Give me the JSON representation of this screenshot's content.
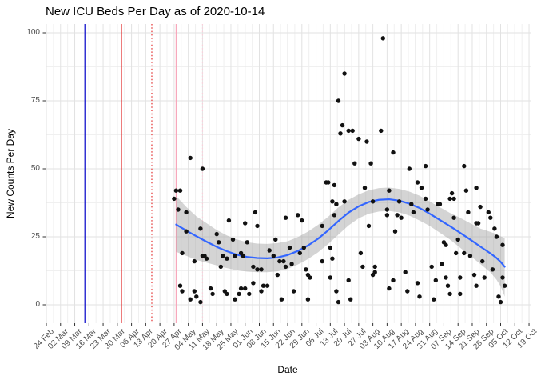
{
  "title": "New ICU Beds Per Day as of 2020-10-14",
  "colors": {
    "background": "#FFFFFF",
    "grid_major": "#E2E2E2",
    "grid_minor": "#F0F0F0",
    "axis_text": "#4D4D4D",
    "tick_mark": "#333333",
    "point": "#111111",
    "smooth_line": "#3366FF",
    "confidence_band": "#999999",
    "vline_blue": "#1414CC",
    "vline_red": "#DE1414",
    "vline_red_dotted": "#E84040",
    "vline_pink": "#F7A8BC",
    "vline_pink_dotted": "#FAD0DB"
  },
  "chart_data": {
    "type": "scatter",
    "title": "New ICU Beds Per Day as of 2020-10-14",
    "xlabel": "Date",
    "ylabel": "New Counts Per Day",
    "grid": true,
    "legend": false,
    "ylim": [
      0,
      100
    ],
    "y_ticks": [
      0,
      25,
      50,
      75,
      100
    ],
    "y_minor_ticks": [
      12.5,
      37.5,
      62.5,
      87.5
    ],
    "x_start_date": "2020-02-24",
    "x_tick_interval_days": 7,
    "x_tick_labels": [
      "24 Feb",
      "02 Mar",
      "09 Mar",
      "16 Mar",
      "23 Mar",
      "30 Mar",
      "06 Apr",
      "13 Apr",
      "20 Apr",
      "27 Apr",
      "04 May",
      "11 May",
      "18 May",
      "25 May",
      "01 Jun",
      "08 Jun",
      "15 Jun",
      "22 Jun",
      "29 Jun",
      "06 Jul",
      "13 Jul",
      "20 Jul",
      "27 Jul",
      "03 Aug",
      "10 Aug",
      "17 Aug",
      "24 Aug",
      "31 Aug",
      "07 Sep",
      "14 Sep",
      "21 Sep",
      "28 Sep",
      "05 Oct",
      "12 Oct",
      "19 Oct"
    ],
    "point_color": "#111111",
    "vlines": [
      {
        "date": "2020-03-14",
        "color": "#1414CC",
        "style": "solid"
      },
      {
        "date": "2020-04-01",
        "color": "#DE1414",
        "style": "solid"
      },
      {
        "date": "2020-04-16",
        "color": "#E84040",
        "style": "dotted"
      },
      {
        "date": "2020-04-28",
        "color": "#F7A8BC",
        "style": "solid"
      },
      {
        "date": "2020-05-11",
        "color": "#FAD0DB",
        "style": "dotted"
      }
    ],
    "points": [
      [
        "2020-04-27",
        39
      ],
      [
        "2020-04-28",
        42
      ],
      [
        "2020-04-29",
        35
      ],
      [
        "2020-04-30",
        42
      ],
      [
        "2020-04-30",
        7
      ],
      [
        "2020-05-01",
        19
      ],
      [
        "2020-05-01",
        5
      ],
      [
        "2020-05-03",
        34
      ],
      [
        "2020-05-03",
        27
      ],
      [
        "2020-05-05",
        54
      ],
      [
        "2020-05-05",
        2
      ],
      [
        "2020-05-07",
        16
      ],
      [
        "2020-05-07",
        5
      ],
      [
        "2020-05-08",
        3
      ],
      [
        "2020-05-10",
        28
      ],
      [
        "2020-05-10",
        1
      ],
      [
        "2020-05-11",
        50
      ],
      [
        "2020-05-11",
        18
      ],
      [
        "2020-05-12",
        18
      ],
      [
        "2020-05-13",
        17
      ],
      [
        "2020-05-15",
        6
      ],
      [
        "2020-05-16",
        4
      ],
      [
        "2020-05-18",
        26
      ],
      [
        "2020-05-19",
        23
      ],
      [
        "2020-05-20",
        14
      ],
      [
        "2020-05-21",
        18
      ],
      [
        "2020-05-22",
        5
      ],
      [
        "2020-05-23",
        17
      ],
      [
        "2020-05-23",
        4
      ],
      [
        "2020-05-24",
        31
      ],
      [
        "2020-05-26",
        24
      ],
      [
        "2020-05-27",
        18
      ],
      [
        "2020-05-27",
        2
      ],
      [
        "2020-05-29",
        4
      ],
      [
        "2020-05-30",
        19
      ],
      [
        "2020-05-30",
        6
      ],
      [
        "2020-05-31",
        18
      ],
      [
        "2020-06-01",
        30
      ],
      [
        "2020-06-01",
        6
      ],
      [
        "2020-06-02",
        23
      ],
      [
        "2020-06-03",
        4
      ],
      [
        "2020-06-05",
        14
      ],
      [
        "2020-06-05",
        8
      ],
      [
        "2020-06-06",
        34
      ],
      [
        "2020-06-07",
        29
      ],
      [
        "2020-06-07",
        13
      ],
      [
        "2020-06-09",
        13
      ],
      [
        "2020-06-09",
        5
      ],
      [
        "2020-06-10",
        7
      ],
      [
        "2020-06-12",
        7
      ],
      [
        "2020-06-13",
        20
      ],
      [
        "2020-06-15",
        18
      ],
      [
        "2020-06-16",
        24
      ],
      [
        "2020-06-17",
        11
      ],
      [
        "2020-06-18",
        16
      ],
      [
        "2020-06-19",
        2
      ],
      [
        "2020-06-20",
        16
      ],
      [
        "2020-06-21",
        32
      ],
      [
        "2020-06-21",
        14
      ],
      [
        "2020-06-23",
        21
      ],
      [
        "2020-06-24",
        15
      ],
      [
        "2020-06-25",
        5
      ],
      [
        "2020-06-27",
        33
      ],
      [
        "2020-06-28",
        19
      ],
      [
        "2020-06-29",
        31
      ],
      [
        "2020-06-30",
        21
      ],
      [
        "2020-07-01",
        13
      ],
      [
        "2020-07-02",
        11
      ],
      [
        "2020-07-02",
        2
      ],
      [
        "2020-07-03",
        10
      ],
      [
        "2020-07-09",
        29
      ],
      [
        "2020-07-09",
        16
      ],
      [
        "2020-07-11",
        45
      ],
      [
        "2020-07-12",
        45
      ],
      [
        "2020-07-13",
        21
      ],
      [
        "2020-07-13",
        10
      ],
      [
        "2020-07-14",
        38
      ],
      [
        "2020-07-14",
        17
      ],
      [
        "2020-07-15",
        44
      ],
      [
        "2020-07-15",
        33
      ],
      [
        "2020-07-16",
        37
      ],
      [
        "2020-07-16",
        5
      ],
      [
        "2020-07-17",
        75
      ],
      [
        "2020-07-17",
        1
      ],
      [
        "2020-07-18",
        63
      ],
      [
        "2020-07-19",
        66
      ],
      [
        "2020-07-20",
        85
      ],
      [
        "2020-07-20",
        38
      ],
      [
        "2020-07-22",
        64
      ],
      [
        "2020-07-22",
        9
      ],
      [
        "2020-07-23",
        2
      ],
      [
        "2020-07-24",
        64
      ],
      [
        "2020-07-25",
        52
      ],
      [
        "2020-07-27",
        61
      ],
      [
        "2020-07-28",
        19
      ],
      [
        "2020-07-29",
        14
      ],
      [
        "2020-07-30",
        43
      ],
      [
        "2020-07-31",
        60
      ],
      [
        "2020-08-01",
        29
      ],
      [
        "2020-08-02",
        52
      ],
      [
        "2020-08-03",
        38
      ],
      [
        "2020-08-03",
        11
      ],
      [
        "2020-08-04",
        14
      ],
      [
        "2020-08-04",
        12
      ],
      [
        "2020-08-07",
        64
      ],
      [
        "2020-08-08",
        98
      ],
      [
        "2020-08-10",
        35
      ],
      [
        "2020-08-10",
        33
      ],
      [
        "2020-08-11",
        42
      ],
      [
        "2020-08-11",
        6
      ],
      [
        "2020-08-13",
        56
      ],
      [
        "2020-08-13",
        9
      ],
      [
        "2020-08-14",
        27
      ],
      [
        "2020-08-15",
        33
      ],
      [
        "2020-08-16",
        38
      ],
      [
        "2020-08-17",
        32
      ],
      [
        "2020-08-19",
        12
      ],
      [
        "2020-08-20",
        5
      ],
      [
        "2020-08-21",
        50
      ],
      [
        "2020-08-22",
        37
      ],
      [
        "2020-08-23",
        34
      ],
      [
        "2020-08-25",
        45
      ],
      [
        "2020-08-25",
        8
      ],
      [
        "2020-08-26",
        3
      ],
      [
        "2020-08-27",
        43
      ],
      [
        "2020-08-29",
        51
      ],
      [
        "2020-08-29",
        39
      ],
      [
        "2020-08-30",
        35
      ],
      [
        "2020-09-01",
        14
      ],
      [
        "2020-09-02",
        2
      ],
      [
        "2020-09-03",
        9
      ],
      [
        "2020-09-04",
        37
      ],
      [
        "2020-09-05",
        37
      ],
      [
        "2020-09-06",
        15
      ],
      [
        "2020-09-07",
        23
      ],
      [
        "2020-09-08",
        22
      ],
      [
        "2020-09-08",
        10
      ],
      [
        "2020-09-09",
        7
      ],
      [
        "2020-09-10",
        39
      ],
      [
        "2020-09-10",
        4
      ],
      [
        "2020-09-11",
        41
      ],
      [
        "2020-09-12",
        39
      ],
      [
        "2020-09-12",
        32
      ],
      [
        "2020-09-13",
        19
      ],
      [
        "2020-09-14",
        24
      ],
      [
        "2020-09-15",
        10
      ],
      [
        "2020-09-15",
        4
      ],
      [
        "2020-09-17",
        51
      ],
      [
        "2020-09-17",
        19
      ],
      [
        "2020-09-18",
        42
      ],
      [
        "2020-09-19",
        34
      ],
      [
        "2020-09-20",
        18
      ],
      [
        "2020-09-22",
        11
      ],
      [
        "2020-09-23",
        43
      ],
      [
        "2020-09-23",
        30
      ],
      [
        "2020-09-23",
        7
      ],
      [
        "2020-09-24",
        30
      ],
      [
        "2020-09-25",
        36
      ],
      [
        "2020-09-26",
        16
      ],
      [
        "2020-09-27",
        10
      ],
      [
        "2020-09-29",
        34
      ],
      [
        "2020-09-30",
        32
      ],
      [
        "2020-10-01",
        13
      ],
      [
        "2020-10-02",
        28
      ],
      [
        "2020-10-03",
        25
      ],
      [
        "2020-10-04",
        3
      ],
      [
        "2020-10-05",
        1
      ],
      [
        "2020-10-06",
        22
      ],
      [
        "2020-10-06",
        10
      ],
      [
        "2020-10-07",
        7
      ]
    ],
    "smooth_line": {
      "color": "#3366FF",
      "points": [
        [
          "2020-04-28",
          29.5
        ],
        [
          "2020-05-03",
          27.3
        ],
        [
          "2020-05-08",
          25.2
        ],
        [
          "2020-05-13",
          23.2
        ],
        [
          "2020-05-18",
          21.3
        ],
        [
          "2020-05-23",
          19.7
        ],
        [
          "2020-05-28",
          18.4
        ],
        [
          "2020-06-02",
          17.6
        ],
        [
          "2020-06-07",
          17.2
        ],
        [
          "2020-06-12",
          17.1
        ],
        [
          "2020-06-17",
          17.4
        ],
        [
          "2020-06-22",
          18.3
        ],
        [
          "2020-06-27",
          19.8
        ],
        [
          "2020-07-02",
          21.8
        ],
        [
          "2020-07-07",
          24.3
        ],
        [
          "2020-07-12",
          27.4
        ],
        [
          "2020-07-17",
          30.8
        ],
        [
          "2020-07-22",
          33.9
        ],
        [
          "2020-07-27",
          36.2
        ],
        [
          "2020-08-01",
          37.8
        ],
        [
          "2020-08-06",
          38.6
        ],
        [
          "2020-08-11",
          38.8
        ],
        [
          "2020-08-16",
          38.3
        ],
        [
          "2020-08-21",
          37.2
        ],
        [
          "2020-08-26",
          35.6
        ],
        [
          "2020-08-31",
          33.5
        ],
        [
          "2020-09-05",
          31.2
        ],
        [
          "2020-09-10",
          28.9
        ],
        [
          "2020-09-15",
          26.5
        ],
        [
          "2020-09-20",
          24.0
        ],
        [
          "2020-09-25",
          21.4
        ],
        [
          "2020-09-30",
          18.9
        ],
        [
          "2020-10-03",
          17.2
        ],
        [
          "2020-10-05",
          15.8
        ],
        [
          "2020-10-07",
          14.0
        ]
      ]
    },
    "confidence_band": {
      "color": "#999999",
      "opacity": 0.42,
      "points": [
        [
          "2020-04-28",
          19.5,
          40.0
        ],
        [
          "2020-05-03",
          18.0,
          36.0
        ],
        [
          "2020-05-08",
          16.5,
          32.5
        ],
        [
          "2020-05-13",
          15.5,
          30.0
        ],
        [
          "2020-05-18",
          14.5,
          27.5
        ],
        [
          "2020-05-23",
          13.5,
          25.5
        ],
        [
          "2020-05-28",
          12.7,
          24.0
        ],
        [
          "2020-06-02",
          12.2,
          23.0
        ],
        [
          "2020-06-07",
          12.0,
          22.5
        ],
        [
          "2020-06-12",
          12.0,
          22.4
        ],
        [
          "2020-06-17",
          12.3,
          22.7
        ],
        [
          "2020-06-22",
          13.2,
          23.4
        ],
        [
          "2020-06-27",
          14.8,
          24.9
        ],
        [
          "2020-07-02",
          16.8,
          26.9
        ],
        [
          "2020-07-07",
          19.3,
          29.4
        ],
        [
          "2020-07-12",
          22.4,
          32.4
        ],
        [
          "2020-07-17",
          25.8,
          35.8
        ],
        [
          "2020-07-22",
          29.2,
          38.6
        ],
        [
          "2020-07-27",
          31.8,
          40.6
        ],
        [
          "2020-08-01",
          33.5,
          42.1
        ],
        [
          "2020-08-06",
          34.3,
          42.9
        ],
        [
          "2020-08-11",
          34.5,
          43.1
        ],
        [
          "2020-08-16",
          34.0,
          42.6
        ],
        [
          "2020-08-21",
          32.8,
          41.6
        ],
        [
          "2020-08-26",
          31.0,
          40.1
        ],
        [
          "2020-08-31",
          29.0,
          38.0
        ],
        [
          "2020-09-05",
          26.5,
          35.9
        ],
        [
          "2020-09-10",
          24.0,
          33.8
        ],
        [
          "2020-09-15",
          21.0,
          32.0
        ],
        [
          "2020-09-20",
          18.0,
          30.0
        ],
        [
          "2020-09-25",
          15.0,
          28.0
        ],
        [
          "2020-09-30",
          11.9,
          26.8
        ],
        [
          "2020-10-03",
          9.2,
          26.0
        ],
        [
          "2020-10-05",
          6.8,
          25.2
        ],
        [
          "2020-10-07",
          3.0,
          24.5
        ]
      ]
    }
  }
}
